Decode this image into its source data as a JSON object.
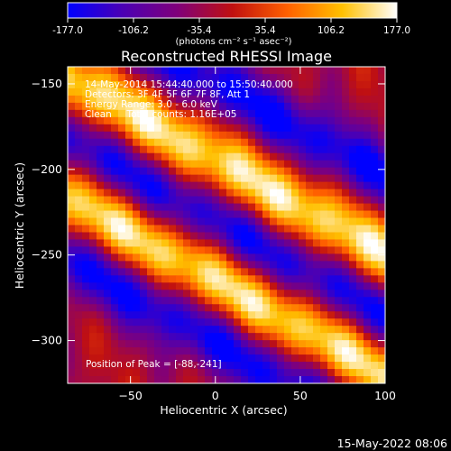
{
  "chart_data": {
    "type": "heatmap",
    "title": "Reconstructed RHESSI Image",
    "xlabel": "Heliocentric X (arcsec)",
    "ylabel": "Heliocentric Y (arcsec)",
    "xlim": [
      -87,
      100
    ],
    "ylim": [
      -325,
      -140
    ],
    "xticks": [
      -50,
      0,
      50,
      100
    ],
    "yticks": [
      -150,
      -200,
      -250,
      -300
    ],
    "info_lines": [
      "14-May-2014 15:44:40.000 to 15:50:40.000",
      "Detectors: 3F 4F 5F 6F 7F 8F, Att 1",
      "Energy Range: 3.0 - 6.0 keV",
      "Clean     Total counts: 1.16E+05"
    ],
    "peak_label": "Position of Peak = [-88,-241]",
    "peak": [
      -88,
      -241
    ],
    "colorbar": {
      "range": [
        -177.0,
        177.0
      ],
      "tick_labels": [
        "-177.0",
        "-106.2",
        "-35.4",
        "35.4",
        "106.2",
        "177.0"
      ],
      "unit_label": "(photons cm⁻² s⁻¹ asec⁻²)",
      "colormap": [
        "#0000ff",
        "#4b00b4",
        "#80007a",
        "#c01010",
        "#ff6000",
        "#ffc000",
        "#ffffff"
      ]
    },
    "pattern": {
      "bright_band_centers_y_at_x0": [
        -195,
        -265
      ],
      "dark_band_centers_y_at_x0": [
        -150,
        -230,
        -300
      ],
      "slope": -0.55
    }
  },
  "timestamp": "15-May-2022 08:06"
}
